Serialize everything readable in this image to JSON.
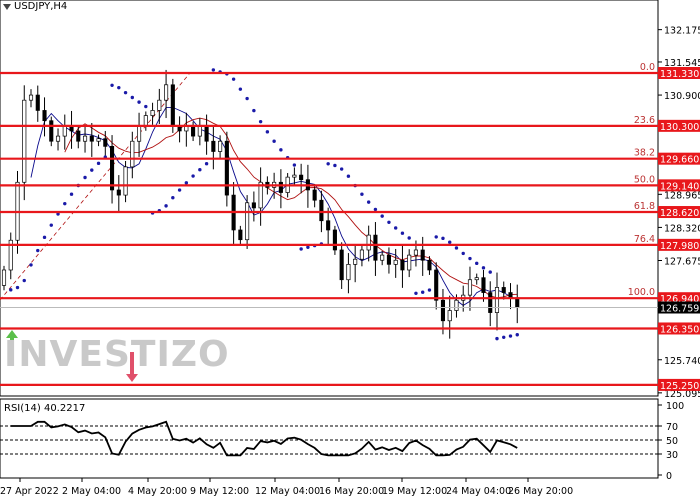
{
  "window": {
    "title": "USDJPY,H4"
  },
  "price_axis": {
    "labels": [
      "132.175",
      "131.545",
      "130.900",
      "128.965",
      "128.320",
      "127.675",
      "125.740",
      "125.095"
    ],
    "values": [
      132.175,
      131.545,
      130.9,
      128.965,
      128.32,
      127.675,
      125.74,
      125.095
    ]
  },
  "levels": [
    {
      "fib": "0.0",
      "price": "131.330"
    },
    {
      "fib": "23.6",
      "price": "130.300"
    },
    {
      "fib": "38.2",
      "price": "129.660"
    },
    {
      "fib": "50.0",
      "price": "129.140"
    },
    {
      "fib": "61.8",
      "price": "128.620"
    },
    {
      "fib": "76.4",
      "price": "127.980"
    },
    {
      "fib": "100.0",
      "price": "126.940"
    },
    {
      "fib": "",
      "price": "126.350"
    },
    {
      "fib": "",
      "price": "125.250"
    }
  ],
  "current_price": "126.759",
  "time_axis": [
    "27 Apr 2022",
    "2 May 04:00",
    "4 May 20:00",
    "9 May 12:00",
    "12 May 04:00",
    "16 May 20:00",
    "19 May 12:00",
    "24 May 04:00",
    "26 May 20:00"
  ],
  "rsi": {
    "label": "RSI(14) 40.2217",
    "levels": [
      "100",
      "70",
      "50",
      "30",
      "0"
    ]
  },
  "closes": [
    127.49,
    128.07,
    129.2,
    130.8,
    130.9,
    130.6,
    130.4,
    130.0,
    130.1,
    130.3,
    130.2,
    130.0,
    130.1,
    130.0,
    130.05,
    129.9,
    129.05,
    128.95,
    129.5,
    130.0,
    130.3,
    130.5,
    130.6,
    130.8,
    131.1,
    130.3,
    130.2,
    130.3,
    130.1,
    130.3,
    130.0,
    129.8,
    130.0,
    128.95,
    128.27,
    128.08,
    128.8,
    128.7,
    129.2,
    129.1,
    129.2,
    129.0,
    129.3,
    129.34,
    129.25,
    129.05,
    128.85,
    128.45,
    128.27,
    127.88,
    127.3,
    127.6,
    127.7,
    127.88,
    128.17,
    127.68,
    127.78,
    127.6,
    127.68,
    127.49,
    127.78,
    127.88,
    127.68,
    127.49,
    126.9,
    126.5,
    126.7,
    126.9,
    127.0,
    127.3,
    127.34,
    127.05,
    126.66,
    127.15,
    127.05,
    126.95,
    126.76
  ],
  "colors": {
    "level": "#e8171b",
    "sar": "#1a1aa8",
    "ma_fast": "#0a0a8c",
    "ma_slow": "#b01010",
    "bull": "#ffffff",
    "bear": "#000000"
  },
  "watermark": {
    "text": "INVESTIZO"
  }
}
